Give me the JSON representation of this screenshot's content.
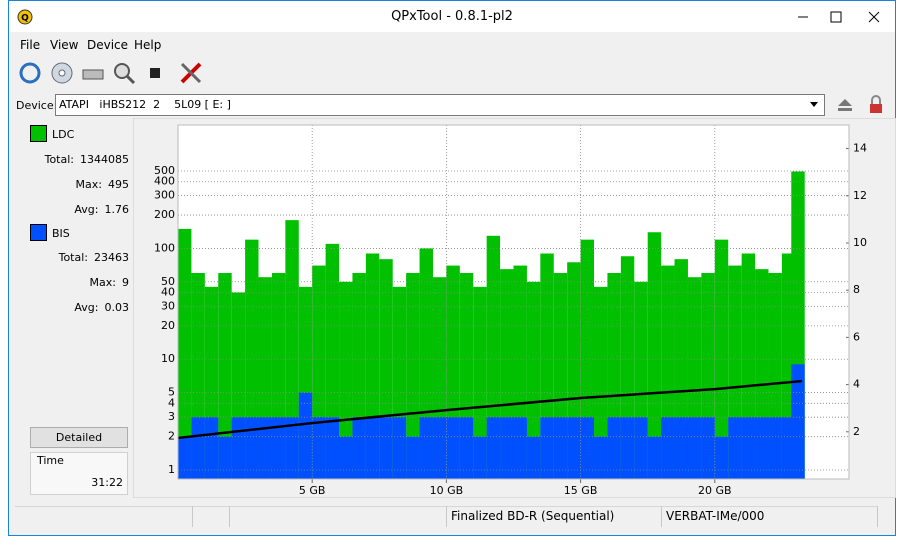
{
  "window": {
    "title": "QPxTool - 0.8.1-pl2"
  },
  "menu": [
    "File",
    "View",
    "Device",
    "Help"
  ],
  "device": {
    "label": "Device:",
    "value": "ATAPI   iHBS212  2    5L09 [ E: ]"
  },
  "stats": {
    "ldc": {
      "name": "LDC",
      "rows": [
        {
          "label": "Total:",
          "value": 1344085
        },
        {
          "label": "Max:",
          "value": 495
        },
        {
          "label": "Avg:",
          "value": 1.76
        }
      ]
    },
    "bis": {
      "name": "BIS",
      "rows": [
        {
          "label": "Total:",
          "value": 23463
        },
        {
          "label": "Max:",
          "value": 9
        },
        {
          "label": "Avg:",
          "value": 0.03
        }
      ]
    }
  },
  "detailed_button": "Detailed",
  "time": {
    "label": "Time",
    "value": "31:22"
  },
  "status": [
    "Finalized BD-R (Sequential)",
    "VERBAT-IMe/000"
  ],
  "chart_data": {
    "type": "bar",
    "yscale": "log",
    "grid": true,
    "xlim": [
      0,
      25
    ],
    "xticks": [
      {
        "value": 5,
        "label": "5 GB"
      },
      {
        "value": 10,
        "label": "10 GB"
      },
      {
        "value": 15,
        "label": "15 GB"
      },
      {
        "value": 20,
        "label": "20 GB"
      }
    ],
    "ylim": [
      0.83,
      1300
    ],
    "yticks": [
      1,
      2,
      3,
      4,
      5,
      10,
      20,
      30,
      40,
      50,
      100,
      200,
      300,
      400,
      500
    ],
    "y2lim": [
      0,
      15
    ],
    "y2ticks": [
      2,
      4,
      6,
      8,
      10,
      12,
      14
    ],
    "x": [
      0.25,
      0.75,
      1.25,
      1.75,
      2.25,
      2.75,
      3.25,
      3.75,
      4.25,
      4.75,
      5.25,
      5.75,
      6.25,
      6.75,
      7.25,
      7.75,
      8.25,
      8.75,
      9.25,
      9.75,
      10.25,
      10.75,
      11.25,
      11.75,
      12.25,
      12.75,
      13.25,
      13.75,
      14.25,
      14.75,
      15.25,
      15.75,
      16.25,
      16.75,
      17.25,
      17.75,
      18.25,
      18.75,
      19.25,
      19.75,
      20.25,
      20.75,
      21.25,
      21.75,
      22.25,
      22.75,
      23.1
    ],
    "series": [
      {
        "name": "LDC",
        "color": "#00c000",
        "values": [
          150,
          60,
          45,
          60,
          40,
          120,
          55,
          60,
          180,
          45,
          70,
          110,
          50,
          60,
          90,
          80,
          45,
          60,
          100,
          55,
          70,
          60,
          45,
          130,
          65,
          70,
          50,
          90,
          60,
          75,
          120,
          45,
          60,
          85,
          50,
          140,
          70,
          80,
          55,
          60,
          120,
          70,
          90,
          65,
          60,
          90,
          495
        ]
      },
      {
        "name": "BIS",
        "color": "#0050ff",
        "values": [
          2,
          3,
          3,
          2,
          3,
          3,
          3,
          3,
          3,
          5,
          3,
          3,
          2,
          3,
          3,
          3,
          3,
          2,
          3,
          3,
          3,
          3,
          2,
          3,
          3,
          3,
          2,
          3,
          3,
          3,
          3,
          2,
          3,
          3,
          3,
          2,
          3,
          3,
          3,
          3,
          2,
          3,
          3,
          3,
          3,
          3,
          9
        ]
      },
      {
        "color": "#000000",
        "axis": "y2",
        "x": [
          0,
          5,
          10,
          15,
          20,
          23.25
        ],
        "values": [
          1.74,
          2.37,
          2.92,
          3.43,
          3.81,
          4.15
        ]
      }
    ]
  }
}
